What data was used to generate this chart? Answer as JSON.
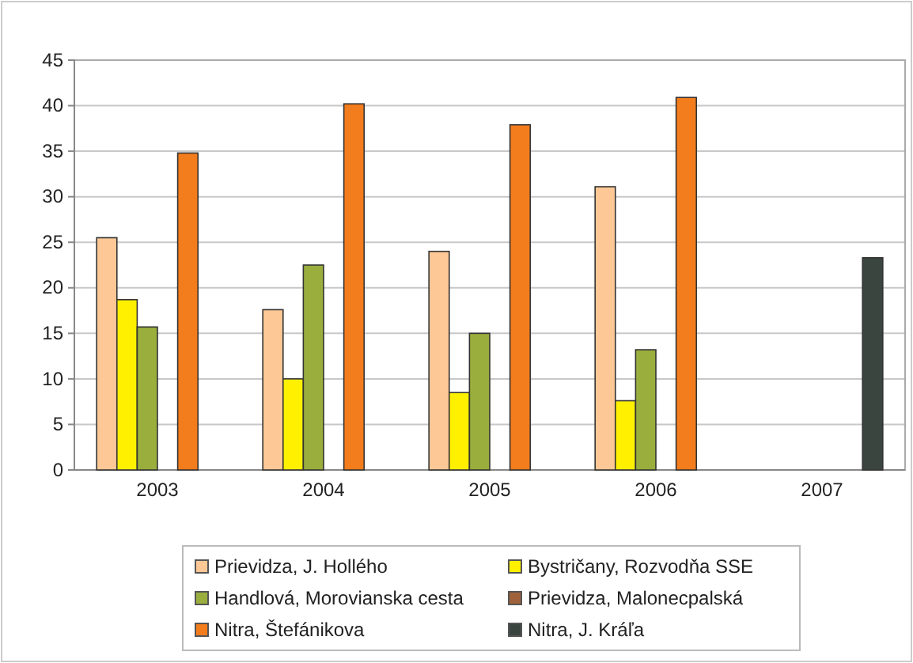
{
  "chart_data": {
    "type": "bar",
    "categories": [
      "2003",
      "2004",
      "2005",
      "2006",
      "2007"
    ],
    "series": [
      {
        "name": "Prievidza, J. Hollého",
        "color": "#fdc896",
        "values": [
          25.5,
          17.6,
          24,
          31.1,
          null
        ]
      },
      {
        "name": "Bystričany, Rozvodňa SSE",
        "color": "#fff000",
        "values": [
          18.7,
          10,
          8.5,
          7.6,
          null
        ]
      },
      {
        "name": "Handlová, Morovianska cesta",
        "color": "#9aae3e",
        "values": [
          15.7,
          22.5,
          15,
          13.2,
          null
        ]
      },
      {
        "name": "Prievidza, Malonecpalská",
        "color": "#a0623a",
        "values": [
          null,
          null,
          null,
          null,
          null
        ]
      },
      {
        "name": "Nitra, Štefánikova",
        "color": "#f37c1c",
        "values": [
          34.8,
          40.2,
          37.9,
          40.9,
          null
        ]
      },
      {
        "name": "Nitra, J. Kráľa",
        "color": "#3b4540",
        "values": [
          null,
          null,
          null,
          null,
          23.3
        ]
      }
    ],
    "ylim": [
      0,
      45
    ],
    "yticks": [
      0,
      5,
      10,
      15,
      20,
      25,
      30,
      35,
      40,
      45
    ],
    "grid": "y",
    "legend": "bottom"
  }
}
